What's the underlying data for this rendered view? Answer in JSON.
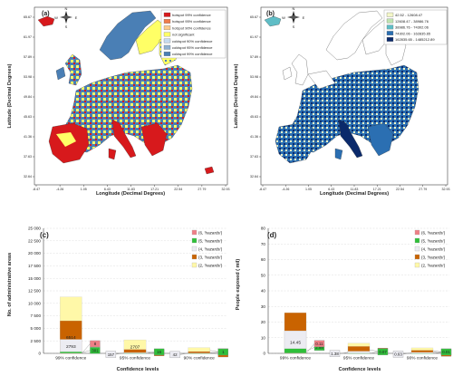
{
  "panels": {
    "a": {
      "tag": "(a)",
      "xlabel": "Longitude (Decimal Degrees)",
      "ylabel": "Latitude (Decimal Degrees)",
      "xticks": [
        "-8.47",
        "-4.26",
        "1.05",
        "6.43",
        "11.83",
        "17.21",
        "22.54",
        "27.79",
        "32.93"
      ],
      "yticks": [
        "65.67",
        "61.97",
        "57.89",
        "53.98",
        "49.84",
        "45.63",
        "41.36",
        "37.63",
        "32.64"
      ],
      "legend": [
        {
          "label": "hotspot 99% confidence",
          "color": "#d7191c"
        },
        {
          "label": "hotspot 95% confidence",
          "color": "#f07c4a"
        },
        {
          "label": "hotspot 90% confidence",
          "color": "#fdcb8c"
        },
        {
          "label": "not significant",
          "color": "#ffff66"
        },
        {
          "label": "coldspot 90% confidence",
          "color": "#c6dbef"
        },
        {
          "label": "coldspot 95% confidence",
          "color": "#8fb1d2"
        },
        {
          "label": "coldspot 99% confidence",
          "color": "#4a7fb5"
        }
      ],
      "compass": {
        "n": "N",
        "s": "S",
        "e": "E",
        "w": "W"
      }
    },
    "b": {
      "tag": "(b)",
      "xlabel": "Longitude (Decimal Degrees)",
      "ylabel": "Latitude (Decimal Degrees)",
      "xticks": [
        "-8.47",
        "-4.26",
        "1.05",
        "6.43",
        "11.83",
        "17.21",
        "22.54",
        "27.79",
        "32.93"
      ],
      "yticks": [
        "65.67",
        "61.97",
        "57.89",
        "53.98",
        "49.84",
        "45.63",
        "41.36",
        "37.63",
        "32.64"
      ],
      "legend": [
        {
          "label": "42.52 - 12608.47",
          "color": "#f4f7c8"
        },
        {
          "label": "12608.47 - 38986.76",
          "color": "#bfe3b0"
        },
        {
          "label": "38986.76 - 74302.06",
          "color": "#5fbdc6"
        },
        {
          "label": "74302.06 - 162835.65",
          "color": "#2b6fb2"
        },
        {
          "label": "162835.65 - 1485212.89",
          "color": "#0b2a6b"
        }
      ],
      "compass": {
        "n": "N",
        "s": "S",
        "e": "E",
        "w": "W"
      }
    }
  },
  "chart_data": [
    {
      "type": "bar",
      "panel": "(c)",
      "xlabel": "Confidence levels",
      "ylabel": "No. of administrative areas",
      "ylim": [
        0,
        25000
      ],
      "yticks": [
        "0",
        "2 500",
        "5 000",
        "7 500",
        "10 000",
        "12 500",
        "15 000",
        "17 500",
        "20 000",
        "22 500",
        "25 000"
      ],
      "categories": [
        "99% confidence",
        "95% confidence",
        "90% confidence"
      ],
      "series": [
        {
          "name": "(2, 'hazards')",
          "color": "#fff8a8",
          "values": [
            11298,
            2707,
            1150
          ]
        },
        {
          "name": "(3, 'hazards')",
          "color": "#c96300",
          "values": [
            6514,
            780,
            358
          ]
        },
        {
          "name": "(4, 'hazards')",
          "color": "#ececf2",
          "values": [
            2793,
            157,
            42
          ]
        },
        {
          "name": "(5, 'hazards')",
          "color": "#2fbf3a",
          "values": [
            301,
            16,
            1
          ]
        },
        {
          "name": "(6, 'hazards')",
          "color": "#ef7f86",
          "values": [
            8,
            0,
            0
          ]
        }
      ],
      "legend": "top-right",
      "grid": true
    },
    {
      "type": "bar",
      "panel": "(d)",
      "xlabel": "Confidence levels",
      "ylabel": "People exposed ( mil)",
      "ylim": [
        0,
        80
      ],
      "yticks": [
        "0",
        "10",
        "20",
        "30",
        "40",
        "50",
        "60",
        "70",
        "80"
      ],
      "categories": [
        "99% confidence",
        "95% confidence",
        "90% confidence"
      ],
      "series": [
        {
          "name": "(2, 'hazards')",
          "color": "#fff8a8",
          "values": [
            24.98,
            6.53,
            3.51
          ]
        },
        {
          "name": "(3, 'hazards')",
          "color": "#c96300",
          "values": [
            26.0,
            4.44,
            1.98
          ]
        },
        {
          "name": "(4, 'hazards')",
          "color": "#ececf2",
          "values": [
            14.45,
            1.38,
            0.63
          ]
        },
        {
          "name": "(5, 'hazards')",
          "color": "#2fbf3a",
          "values": [
            2.98,
            0.07,
            0.01
          ]
        },
        {
          "name": "(6, 'hazards')",
          "color": "#ef7f86",
          "values": [
            0.11,
            0,
            0
          ]
        }
      ],
      "legend": "top-right",
      "grid": true
    }
  ]
}
